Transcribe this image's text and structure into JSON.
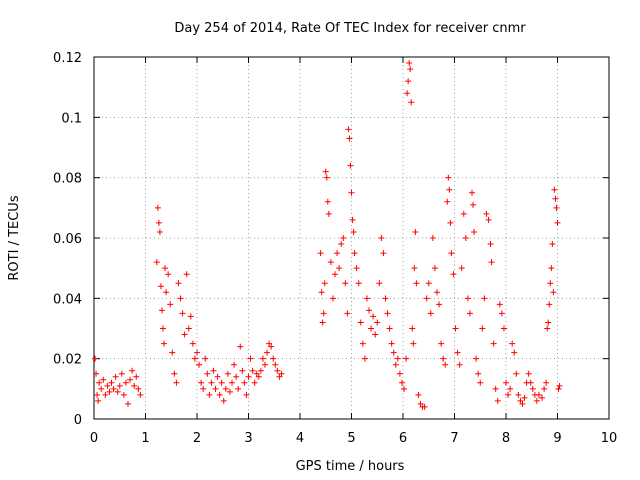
{
  "chart_data": {
    "type": "scatter",
    "title": "Day 254 of 2014, Rate Of TEC Index for receiver cnmr",
    "xlabel": "GPS time / hours",
    "ylabel": "ROTI / TECUs",
    "xlim": [
      0,
      10
    ],
    "ylim": [
      0,
      0.12
    ],
    "x_ticks": [
      0,
      1,
      2,
      3,
      4,
      5,
      6,
      7,
      8,
      9,
      10
    ],
    "y_ticks": [
      0,
      0.02,
      0.04,
      0.06,
      0.08,
      0.1,
      0.12
    ],
    "x_tick_labels": [
      "0",
      "1",
      "2",
      "3",
      "4",
      "5",
      "6",
      "7",
      "8",
      "9",
      "10"
    ],
    "y_tick_labels": [
      "0",
      "0.02",
      "0.04",
      "0.06",
      "0.08",
      "0.1",
      "0.12"
    ],
    "grid": true,
    "marker": "+",
    "color": "#ff0000",
    "series": [
      {
        "name": "ROTI",
        "points": [
          [
            0.02,
            0.02
          ],
          [
            0.04,
            0.015
          ],
          [
            0.06,
            0.008
          ],
          [
            0.08,
            0.006
          ],
          [
            0.1,
            0.012
          ],
          [
            0.14,
            0.01
          ],
          [
            0.18,
            0.013
          ],
          [
            0.22,
            0.008
          ],
          [
            0.26,
            0.011
          ],
          [
            0.3,
            0.009
          ],
          [
            0.34,
            0.012
          ],
          [
            0.38,
            0.01
          ],
          [
            0.42,
            0.014
          ],
          [
            0.46,
            0.009
          ],
          [
            0.5,
            0.011
          ],
          [
            0.54,
            0.015
          ],
          [
            0.58,
            0.008
          ],
          [
            0.62,
            0.012
          ],
          [
            0.66,
            0.005
          ],
          [
            0.7,
            0.013
          ],
          [
            0.74,
            0.016
          ],
          [
            0.78,
            0.011
          ],
          [
            0.82,
            0.014
          ],
          [
            0.86,
            0.01
          ],
          [
            0.9,
            0.008
          ],
          [
            1.22,
            0.052
          ],
          [
            1.24,
            0.07
          ],
          [
            1.26,
            0.065
          ],
          [
            1.28,
            0.062
          ],
          [
            1.3,
            0.044
          ],
          [
            1.32,
            0.036
          ],
          [
            1.34,
            0.03
          ],
          [
            1.36,
            0.025
          ],
          [
            1.38,
            0.05
          ],
          [
            1.4,
            0.042
          ],
          [
            1.44,
            0.048
          ],
          [
            1.48,
            0.038
          ],
          [
            1.52,
            0.022
          ],
          [
            1.56,
            0.015
          ],
          [
            1.6,
            0.012
          ],
          [
            1.64,
            0.045
          ],
          [
            1.68,
            0.04
          ],
          [
            1.72,
            0.035
          ],
          [
            1.76,
            0.028
          ],
          [
            1.8,
            0.048
          ],
          [
            1.84,
            0.03
          ],
          [
            1.88,
            0.034
          ],
          [
            1.92,
            0.025
          ],
          [
            1.96,
            0.02
          ],
          [
            2.0,
            0.022
          ],
          [
            2.04,
            0.018
          ],
          [
            2.08,
            0.012
          ],
          [
            2.12,
            0.01
          ],
          [
            2.16,
            0.02
          ],
          [
            2.2,
            0.015
          ],
          [
            2.24,
            0.008
          ],
          [
            2.28,
            0.012
          ],
          [
            2.32,
            0.016
          ],
          [
            2.36,
            0.01
          ],
          [
            2.4,
            0.014
          ],
          [
            2.44,
            0.008
          ],
          [
            2.48,
            0.012
          ],
          [
            2.52,
            0.006
          ],
          [
            2.56,
            0.01
          ],
          [
            2.6,
            0.015
          ],
          [
            2.64,
            0.009
          ],
          [
            2.68,
            0.012
          ],
          [
            2.72,
            0.018
          ],
          [
            2.76,
            0.014
          ],
          [
            2.8,
            0.01
          ],
          [
            2.84,
            0.024
          ],
          [
            2.88,
            0.016
          ],
          [
            2.92,
            0.012
          ],
          [
            2.96,
            0.008
          ],
          [
            3.0,
            0.014
          ],
          [
            3.04,
            0.02
          ],
          [
            3.08,
            0.016
          ],
          [
            3.12,
            0.012
          ],
          [
            3.16,
            0.015
          ],
          [
            3.2,
            0.014
          ],
          [
            3.24,
            0.016
          ],
          [
            3.28,
            0.02
          ],
          [
            3.32,
            0.018
          ],
          [
            3.36,
            0.022
          ],
          [
            3.4,
            0.025
          ],
          [
            3.44,
            0.024
          ],
          [
            3.48,
            0.02
          ],
          [
            3.52,
            0.018
          ],
          [
            3.56,
            0.016
          ],
          [
            3.6,
            0.014
          ],
          [
            3.64,
            0.015
          ],
          [
            4.4,
            0.055
          ],
          [
            4.42,
            0.042
          ],
          [
            4.44,
            0.032
          ],
          [
            4.46,
            0.035
          ],
          [
            4.48,
            0.045
          ],
          [
            4.5,
            0.082
          ],
          [
            4.52,
            0.08
          ],
          [
            4.54,
            0.072
          ],
          [
            4.56,
            0.068
          ],
          [
            4.6,
            0.052
          ],
          [
            4.64,
            0.04
          ],
          [
            4.68,
            0.048
          ],
          [
            4.72,
            0.055
          ],
          [
            4.76,
            0.05
          ],
          [
            4.8,
            0.058
          ],
          [
            4.84,
            0.06
          ],
          [
            4.88,
            0.045
          ],
          [
            4.92,
            0.035
          ],
          [
            4.94,
            0.096
          ],
          [
            4.96,
            0.093
          ],
          [
            4.98,
            0.084
          ],
          [
            5.0,
            0.075
          ],
          [
            5.02,
            0.066
          ],
          [
            5.04,
            0.062
          ],
          [
            5.06,
            0.055
          ],
          [
            5.1,
            0.05
          ],
          [
            5.14,
            0.045
          ],
          [
            5.18,
            0.032
          ],
          [
            5.22,
            0.025
          ],
          [
            5.26,
            0.02
          ],
          [
            5.3,
            0.04
          ],
          [
            5.34,
            0.036
          ],
          [
            5.38,
            0.03
          ],
          [
            5.42,
            0.034
          ],
          [
            5.46,
            0.028
          ],
          [
            5.5,
            0.032
          ],
          [
            5.54,
            0.045
          ],
          [
            5.58,
            0.06
          ],
          [
            5.62,
            0.055
          ],
          [
            5.66,
            0.04
          ],
          [
            5.7,
            0.035
          ],
          [
            5.74,
            0.03
          ],
          [
            5.78,
            0.025
          ],
          [
            5.82,
            0.022
          ],
          [
            5.86,
            0.018
          ],
          [
            5.9,
            0.02
          ],
          [
            5.94,
            0.015
          ],
          [
            5.98,
            0.012
          ],
          [
            6.02,
            0.01
          ],
          [
            6.06,
            0.02
          ],
          [
            6.08,
            0.108
          ],
          [
            6.1,
            0.112
          ],
          [
            6.12,
            0.118
          ],
          [
            6.14,
            0.116
          ],
          [
            6.16,
            0.105
          ],
          [
            6.18,
            0.03
          ],
          [
            6.2,
            0.025
          ],
          [
            6.22,
            0.05
          ],
          [
            6.24,
            0.062
          ],
          [
            6.26,
            0.045
          ],
          [
            6.3,
            0.008
          ],
          [
            6.34,
            0.005
          ],
          [
            6.38,
            0.004
          ],
          [
            6.42,
            0.004
          ],
          [
            6.46,
            0.04
          ],
          [
            6.5,
            0.045
          ],
          [
            6.54,
            0.035
          ],
          [
            6.58,
            0.06
          ],
          [
            6.62,
            0.05
          ],
          [
            6.66,
            0.042
          ],
          [
            6.7,
            0.038
          ],
          [
            6.74,
            0.025
          ],
          [
            6.78,
            0.02
          ],
          [
            6.82,
            0.018
          ],
          [
            6.86,
            0.072
          ],
          [
            6.88,
            0.08
          ],
          [
            6.9,
            0.076
          ],
          [
            6.92,
            0.065
          ],
          [
            6.94,
            0.055
          ],
          [
            6.98,
            0.048
          ],
          [
            7.02,
            0.03
          ],
          [
            7.06,
            0.022
          ],
          [
            7.1,
            0.018
          ],
          [
            7.14,
            0.05
          ],
          [
            7.18,
            0.068
          ],
          [
            7.22,
            0.06
          ],
          [
            7.26,
            0.04
          ],
          [
            7.3,
            0.035
          ],
          [
            7.34,
            0.075
          ],
          [
            7.36,
            0.071
          ],
          [
            7.38,
            0.062
          ],
          [
            7.42,
            0.02
          ],
          [
            7.46,
            0.015
          ],
          [
            7.5,
            0.012
          ],
          [
            7.54,
            0.03
          ],
          [
            7.58,
            0.04
          ],
          [
            7.62,
            0.068
          ],
          [
            7.66,
            0.066
          ],
          [
            7.7,
            0.058
          ],
          [
            7.72,
            0.052
          ],
          [
            7.76,
            0.025
          ],
          [
            7.8,
            0.01
          ],
          [
            7.84,
            0.006
          ],
          [
            7.88,
            0.038
          ],
          [
            7.92,
            0.035
          ],
          [
            7.96,
            0.03
          ],
          [
            8.0,
            0.012
          ],
          [
            8.04,
            0.008
          ],
          [
            8.08,
            0.01
          ],
          [
            8.12,
            0.025
          ],
          [
            8.16,
            0.022
          ],
          [
            8.2,
            0.015
          ],
          [
            8.24,
            0.008
          ],
          [
            8.28,
            0.006
          ],
          [
            8.32,
            0.005
          ],
          [
            8.36,
            0.007
          ],
          [
            8.4,
            0.012
          ],
          [
            8.44,
            0.015
          ],
          [
            8.48,
            0.012
          ],
          [
            8.52,
            0.01
          ],
          [
            8.56,
            0.008
          ],
          [
            8.6,
            0.006
          ],
          [
            8.64,
            0.008
          ],
          [
            8.7,
            0.007
          ],
          [
            8.74,
            0.01
          ],
          [
            8.78,
            0.012
          ],
          [
            8.8,
            0.03
          ],
          [
            8.82,
            0.032
          ],
          [
            8.84,
            0.038
          ],
          [
            8.86,
            0.045
          ],
          [
            8.88,
            0.05
          ],
          [
            8.9,
            0.058
          ],
          [
            8.92,
            0.042
          ],
          [
            8.94,
            0.076
          ],
          [
            8.96,
            0.073
          ],
          [
            8.98,
            0.07
          ],
          [
            9.0,
            0.065
          ],
          [
            9.02,
            0.01
          ],
          [
            9.04,
            0.011
          ]
        ]
      }
    ]
  }
}
